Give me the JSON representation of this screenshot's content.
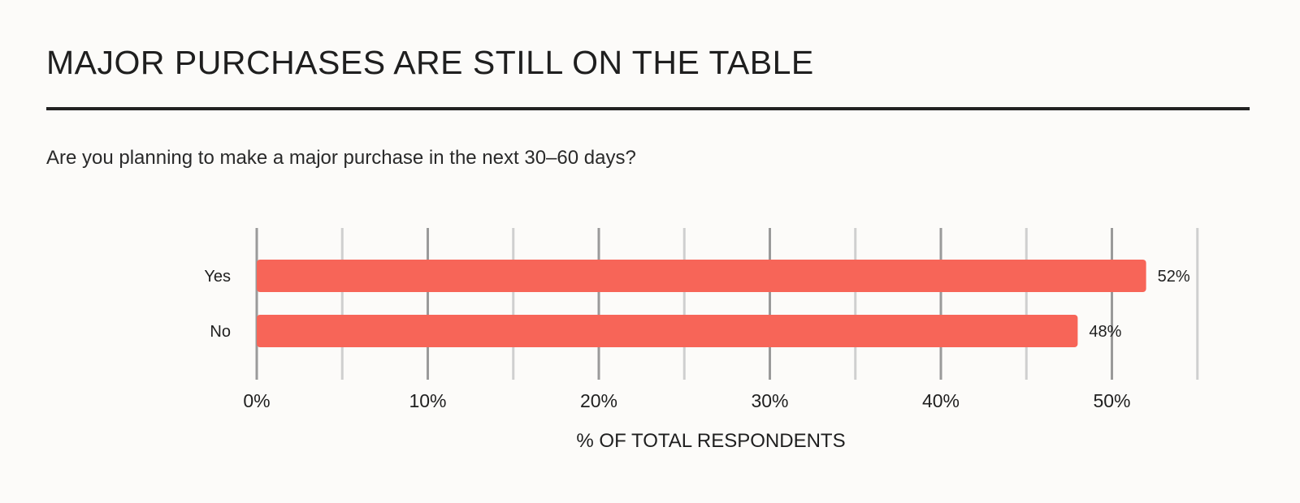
{
  "title": "MAJOR PURCHASES ARE STILL ON THE TABLE",
  "subtitle": "Are you planning to make a major purchase in the next 30–60 days?",
  "colors": {
    "bar": "#f76558",
    "rule": "#222222",
    "grid_major": "#9a9a9a",
    "grid_minor": "#cfcfcf",
    "background": "#fcfbf9"
  },
  "chart_data": {
    "type": "bar",
    "orientation": "horizontal",
    "categories": [
      "Yes",
      "No"
    ],
    "values": [
      52,
      48
    ],
    "data_labels": [
      "52%",
      "48%"
    ],
    "xlabel": "% OF TOTAL RESPONDENTS",
    "ylabel": "",
    "xlim": [
      0,
      55
    ],
    "x_ticks": [
      0,
      10,
      20,
      30,
      40,
      50
    ],
    "x_tick_labels": [
      "0%",
      "10%",
      "20%",
      "30%",
      "40%",
      "50%"
    ],
    "minor_gridlines": [
      5,
      15,
      25,
      35,
      45,
      55
    ],
    "grid": true,
    "legend": "none"
  }
}
